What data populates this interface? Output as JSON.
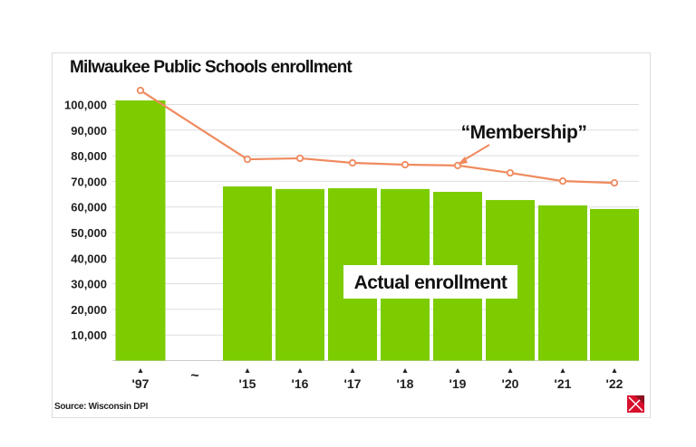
{
  "chart_data": {
    "type": "bar",
    "title": "Milwaukee Public Schools enrollment",
    "source": "Source: Wisconsin DPI",
    "categories": [
      "'97",
      "'15",
      "'16",
      "'17",
      "'18",
      "'19",
      "'20",
      "'21",
      "'22"
    ],
    "axis_break_label": "~",
    "ylim": [
      0,
      105000
    ],
    "yticks": [
      10000,
      20000,
      30000,
      40000,
      50000,
      60000,
      70000,
      80000,
      90000,
      100000
    ],
    "ytick_labels": [
      "10,000",
      "20,000",
      "30,000",
      "40,000",
      "50,000",
      "60,000",
      "70,000",
      "80,000",
      "90,000",
      "100,000"
    ],
    "grid": true,
    "series": [
      {
        "name": "Actual enrollment",
        "type": "bar",
        "color": "#7ccc00",
        "values": [
          101600,
          68000,
          67000,
          67300,
          67000,
          65900,
          62700,
          60600,
          59200
        ]
      },
      {
        "name": "“Membership”",
        "type": "line",
        "color": "#ef8a5e",
        "values": [
          105500,
          78600,
          79000,
          77200,
          76500,
          76200,
          73300,
          70100,
          69400
        ]
      }
    ]
  }
}
